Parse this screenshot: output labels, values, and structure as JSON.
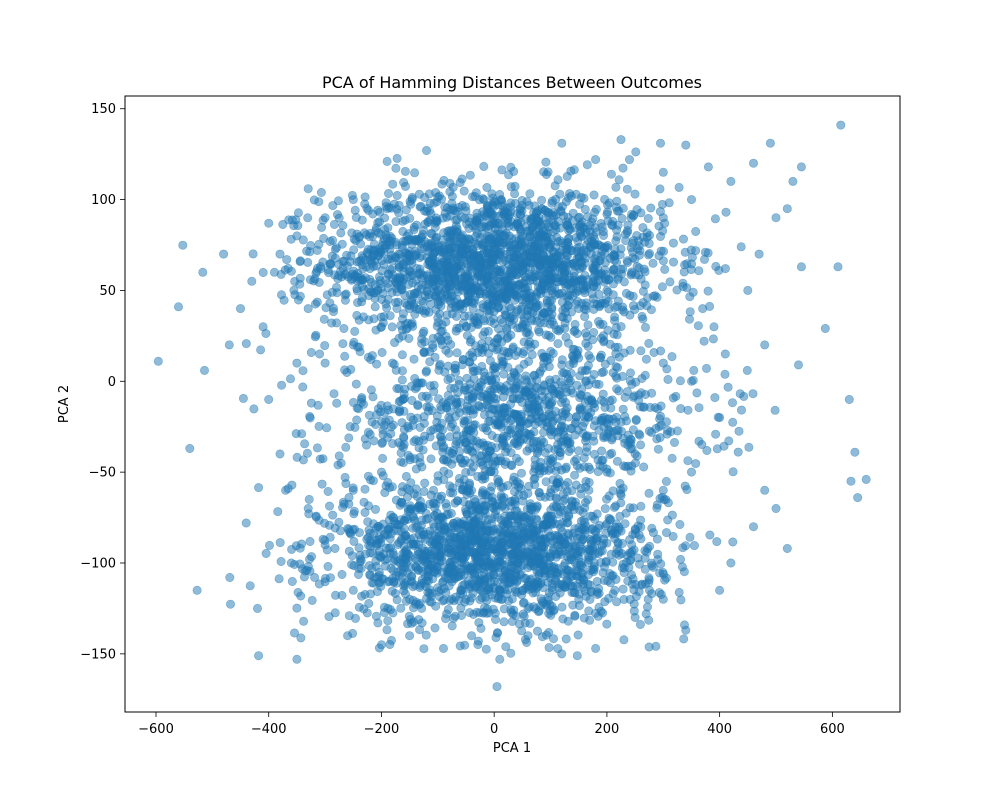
{
  "chart_data": {
    "type": "scatter",
    "title": "PCA of Hamming Distances Between Outcomes",
    "xlabel": "PCA 1",
    "ylabel": "PCA 2",
    "xlim": [
      -655,
      720
    ],
    "ylim": [
      -182,
      157
    ],
    "xticks": [
      -600,
      -400,
      -200,
      0,
      200,
      400,
      600
    ],
    "yticks": [
      -150,
      -100,
      -50,
      0,
      50,
      100,
      150
    ],
    "grid": false,
    "marker_color": "#1f77b4",
    "marker_alpha": 0.5,
    "clusters": [
      {
        "center": [
          0,
          65
        ],
        "spread": [
          190,
          28
        ],
        "count": 2000
      },
      {
        "center": [
          40,
          -20
        ],
        "spread": [
          210,
          30
        ],
        "count": 1100
      },
      {
        "center": [
          0,
          -95
        ],
        "spread": [
          180,
          25
        ],
        "count": 1700
      }
    ],
    "points": [
      [
        -596,
        11
      ],
      [
        -560,
        41
      ],
      [
        -540,
        -37
      ],
      [
        -517,
        60
      ],
      [
        -514,
        6
      ],
      [
        -527,
        -115
      ],
      [
        -469,
        -108
      ],
      [
        -418,
        -151
      ],
      [
        -350,
        -153
      ],
      [
        -400,
        87
      ],
      [
        -330,
        106
      ],
      [
        -190,
        121
      ],
      [
        -120,
        127
      ],
      [
        120,
        131
      ],
      [
        225,
        133
      ],
      [
        295,
        131
      ],
      [
        340,
        130
      ],
      [
        490,
        131
      ],
      [
        615,
        141
      ],
      [
        545,
        118
      ],
      [
        610,
        63
      ],
      [
        545,
        63
      ],
      [
        540,
        9
      ],
      [
        630,
        -10
      ],
      [
        640,
        -39
      ],
      [
        633,
        -55
      ],
      [
        660,
        -54
      ],
      [
        645,
        -64
      ],
      [
        520,
        -92
      ],
      [
        340,
        -137
      ],
      [
        180,
        -147
      ],
      [
        120,
        -150
      ],
      [
        10,
        -153
      ],
      [
        5,
        -168
      ],
      [
        -440,
        -78
      ],
      [
        -420,
        -125
      ],
      [
        -480,
        70
      ],
      [
        -470,
        20
      ],
      [
        -450,
        40
      ],
      [
        -430,
        55
      ],
      [
        -380,
        70
      ],
      [
        -370,
        -60
      ],
      [
        -360,
        -100
      ],
      [
        -300,
        -90
      ],
      [
        -260,
        -140
      ],
      [
        -200,
        -145
      ],
      [
        -150,
        -140
      ],
      [
        -90,
        -147
      ],
      [
        -40,
        -140
      ],
      [
        60,
        -140
      ],
      [
        250,
        -130
      ],
      [
        300,
        -120
      ],
      [
        400,
        -115
      ],
      [
        420,
        -100
      ],
      [
        460,
        -80
      ],
      [
        480,
        -60
      ],
      [
        500,
        -70
      ],
      [
        480,
        20
      ],
      [
        450,
        50
      ],
      [
        470,
        70
      ],
      [
        500,
        90
      ],
      [
        520,
        95
      ],
      [
        530,
        110
      ],
      [
        460,
        120
      ],
      [
        420,
        110
      ],
      [
        380,
        118
      ],
      [
        300,
        115
      ],
      [
        240,
        122
      ],
      [
        180,
        122
      ],
      [
        -250,
        100
      ],
      [
        -300,
        90
      ],
      [
        -350,
        80
      ],
      [
        -390,
        60
      ],
      [
        -410,
        30
      ],
      [
        -400,
        -10
      ],
      [
        -380,
        -40
      ],
      [
        -330,
        -70
      ],
      [
        200,
        50
      ],
      [
        150,
        40
      ],
      [
        100,
        35
      ],
      [
        50,
        30
      ],
      [
        -50,
        30
      ],
      [
        -100,
        35
      ],
      [
        -150,
        40
      ],
      [
        -200,
        30
      ],
      [
        -250,
        20
      ],
      [
        -300,
        10
      ],
      [
        300,
        10
      ],
      [
        350,
        0
      ],
      [
        400,
        -20
      ],
      [
        350,
        -50
      ],
      [
        300,
        -60
      ],
      [
        250,
        -40
      ],
      [
        -200,
        -50
      ],
      [
        -150,
        -60
      ],
      [
        -100,
        -55
      ],
      [
        0,
        -50
      ],
      [
        100,
        -45
      ],
      [
        200,
        -50
      ],
      [
        -250,
        -60
      ],
      [
        -50,
        -120
      ],
      [
        50,
        -115
      ],
      [
        150,
        -120
      ],
      [
        -150,
        -120
      ],
      [
        -250,
        -115
      ],
      [
        300,
        90
      ],
      [
        350,
        100
      ],
      [
        -330,
        40
      ],
      [
        -350,
        10
      ],
      [
        370,
        40
      ],
      [
        390,
        30
      ],
      [
        410,
        15
      ]
    ]
  }
}
